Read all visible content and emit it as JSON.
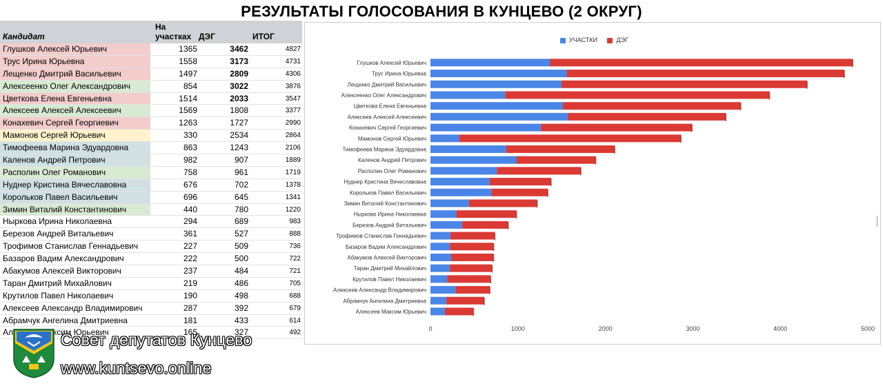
{
  "title": "РЕЗУЛЬТАТЫ ГОЛОСОВАНИЯ В КУНЦЕВО (2 ОКРУГ)",
  "table": {
    "headers": {
      "candidate": "Кандидат",
      "polling": "На участках",
      "deg": "ДЭГ",
      "total": "ИТОГ"
    },
    "rows": [
      {
        "name": "Глушков Алексей Юрьевич",
        "polling": "1365",
        "deg": "3462",
        "total": "4827",
        "bg": "red",
        "bold": true
      },
      {
        "name": "Трус Ирина Юрьевна",
        "polling": "1558",
        "deg": "3173",
        "total": "4731",
        "bg": "red",
        "bold": true
      },
      {
        "name": "Лещенко Дмитрий Васильевич",
        "polling": "1497",
        "deg": "2809",
        "total": "4306",
        "bg": "red",
        "bold": true
      },
      {
        "name": "Алексеенко Олег Александрович",
        "polling": "854",
        "deg": "3022",
        "total": "3876",
        "bg": "green",
        "bold": true
      },
      {
        "name": "Цветкова Елена Евгеньевна",
        "polling": "1514",
        "deg": "2033",
        "total": "3547",
        "bg": "red",
        "bold": true
      },
      {
        "name": "Алексеев Алексей Алексеевич",
        "polling": "1569",
        "deg": "1808",
        "total": "3377",
        "bg": "green",
        "bold": false
      },
      {
        "name": "Конахевич Сергей Георгиевич",
        "polling": "1263",
        "deg": "1727",
        "total": "2990",
        "bg": "red",
        "bold": false
      },
      {
        "name": "Мамонов Сергей Юрьевич",
        "polling": "330",
        "deg": "2534",
        "total": "2864",
        "bg": "yellow",
        "bold": false
      },
      {
        "name": "Тимофеева Марина Эдуардовна",
        "polling": "863",
        "deg": "1243",
        "total": "2106",
        "bg": "blue",
        "bold": false
      },
      {
        "name": "Каленов Андрей Петрович",
        "polling": "982",
        "deg": "907",
        "total": "1889",
        "bg": "blue",
        "bold": false
      },
      {
        "name": "Располин Олег Романович",
        "polling": "758",
        "deg": "961",
        "total": "1719",
        "bg": "green",
        "bold": false
      },
      {
        "name": "Нуднер Кристина Вячеславовна",
        "polling": "676",
        "deg": "702",
        "total": "1378",
        "bg": "blue",
        "bold": false
      },
      {
        "name": "Корольков Павел Васильевич",
        "polling": "696",
        "deg": "645",
        "total": "1341",
        "bg": "blue",
        "bold": false
      },
      {
        "name": "Зимин Виталий Константинович",
        "polling": "440",
        "deg": "780",
        "total": "1220",
        "bg": "green",
        "bold": false
      },
      {
        "name": "Ныркова Ирина Николаевна",
        "polling": "294",
        "deg": "689",
        "total": "983",
        "bg": "",
        "bold": false
      },
      {
        "name": "Березов Андрей Витальевич",
        "polling": "361",
        "deg": "527",
        "total": "888",
        "bg": "",
        "bold": false
      },
      {
        "name": "Трофимов Станислав Геннадьевич",
        "polling": "227",
        "deg": "509",
        "total": "736",
        "bg": "",
        "bold": false
      },
      {
        "name": "Базаров Вадим Александрович",
        "polling": "222",
        "deg": "500",
        "total": "722",
        "bg": "",
        "bold": false
      },
      {
        "name": "Абакумов Алексей Викторович",
        "polling": "237",
        "deg": "484",
        "total": "721",
        "bg": "",
        "bold": false
      },
      {
        "name": "Таран Дмитрий Михайлович",
        "polling": "219",
        "deg": "486",
        "total": "705",
        "bg": "",
        "bold": false
      },
      {
        "name": "Крутилов Павел Николаевич",
        "polling": "190",
        "deg": "498",
        "total": "688",
        "bg": "",
        "bold": false
      },
      {
        "name": "Алексеев Александр Владимирович",
        "polling": "287",
        "deg": "392",
        "total": "679",
        "bg": "",
        "bold": false
      },
      {
        "name": "Абрамчук Ангелина Дмитриевна",
        "polling": "181",
        "deg": "433",
        "total": "614",
        "bg": "",
        "bold": false
      },
      {
        "name": "Алексеев Максим Юрьевич",
        "polling": "165",
        "deg": "327",
        "total": "492",
        "bg": "",
        "bold": false
      }
    ]
  },
  "colors": {
    "polling": "#4a86e8",
    "deg": "#db3a34",
    "red": "#f3cccc",
    "green": "#d9ead3",
    "yellow": "#fff2cc",
    "blue": "#d0e0e3"
  },
  "branding": {
    "name": "Совет депутатов Кунцево",
    "site": "www.kuntsevo.online",
    "logo_icon": "coat-of-arms-icon"
  },
  "chart_data": {
    "type": "bar",
    "orientation": "horizontal",
    "stacked": true,
    "categories": [
      "Глушков Алексей Юрьевич",
      "Трус Ирина Юрьевна",
      "Лещенко Дмитрий Васильевич",
      "Алексеенко Олег Александрович",
      "Цветкова Елена Евгеньевна",
      "Алексеев Алексей Алексеевич",
      "Конахевич Сергей Георгиевич",
      "Мамонов Сергей Юрьевич",
      "Тимофеева Марина Эдуардовна",
      "Каленов Андрей Петрович",
      "Располин Олег Романович",
      "Нуднер Кристина Вячеславовна",
      "Корольков Павел Васильевич",
      "Зимин Виталий Константинович",
      "Ныркова Ирина Николаевна",
      "Березов Андрей Витальевич",
      "Трофимов Станислав Геннадьевич",
      "Базаров Вадим Александрович",
      "Абакумов Алексей Викторович",
      "Таран Дмитрий Михайлович",
      "Крутилов Павел Николаевич",
      "Алексеев Александр Владимирович",
      "Абрамчук Ангелина Дмитриевна",
      "Алексеев Максим Юрьевич"
    ],
    "series": [
      {
        "name": "УЧАСТКИ",
        "values": [
          1365,
          1558,
          1497,
          854,
          1514,
          1569,
          1263,
          330,
          863,
          982,
          758,
          676,
          696,
          440,
          294,
          361,
          227,
          222,
          237,
          219,
          190,
          287,
          181,
          165
        ]
      },
      {
        "name": "ДЭГ",
        "values": [
          3462,
          3173,
          2809,
          3022,
          2033,
          1808,
          1727,
          2534,
          1243,
          907,
          961,
          702,
          645,
          780,
          689,
          527,
          509,
          500,
          484,
          486,
          498,
          392,
          433,
          327
        ]
      }
    ],
    "xlim": [
      0,
      5000
    ],
    "xticks": [
      "0",
      "1000",
      "2000",
      "3000",
      "4000",
      "5000"
    ],
    "legend": "top-center",
    "grid": false
  }
}
